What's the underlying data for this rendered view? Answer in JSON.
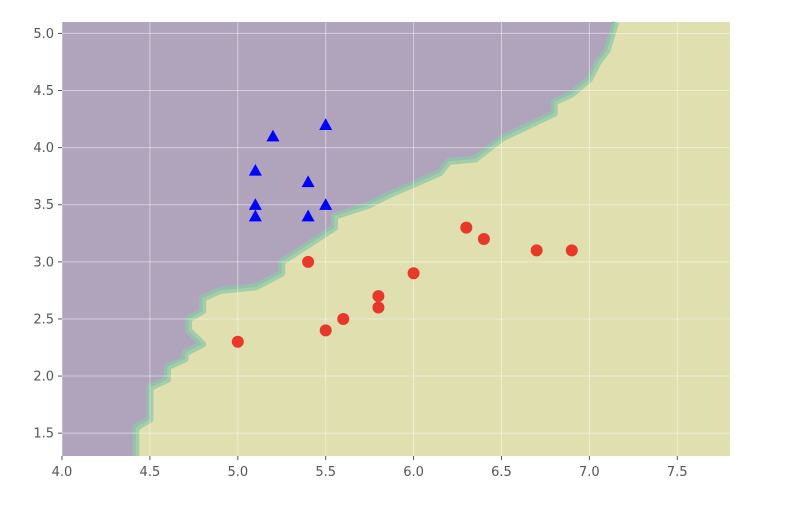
{
  "chart_data": {
    "type": "scatter",
    "title": "",
    "xlabel": "",
    "ylabel": "",
    "xlim": [
      4.0,
      7.8
    ],
    "ylim": [
      1.3,
      5.1
    ],
    "grid": true,
    "x_ticks": [
      4.0,
      4.5,
      5.0,
      5.5,
      6.0,
      6.5,
      7.0,
      7.5
    ],
    "x_tick_labels": [
      "4.0",
      "4.5",
      "5.0",
      "5.5",
      "6.0",
      "6.5",
      "7.0",
      "7.5"
    ],
    "y_ticks": [
      1.5,
      2.0,
      2.5,
      3.0,
      3.5,
      4.0,
      4.5,
      5.0
    ],
    "y_tick_labels": [
      "1.5",
      "2.0",
      "2.5",
      "3.0",
      "3.5",
      "4.0",
      "4.5",
      "5.0"
    ],
    "decision_regions": {
      "upper_left_color": "#b0a4bc",
      "lower_right_color": "#dfdfaf",
      "boundary_color": "#8fc8a8",
      "boundary": [
        [
          4.42,
          1.3
        ],
        [
          4.42,
          1.55
        ],
        [
          4.5,
          1.62
        ],
        [
          4.5,
          1.9
        ],
        [
          4.6,
          1.97
        ],
        [
          4.6,
          2.08
        ],
        [
          4.7,
          2.15
        ],
        [
          4.7,
          2.2
        ],
        [
          4.8,
          2.28
        ],
        [
          4.72,
          2.4
        ],
        [
          4.72,
          2.5
        ],
        [
          4.8,
          2.57
        ],
        [
          4.8,
          2.68
        ],
        [
          4.9,
          2.75
        ],
        [
          5.1,
          2.78
        ],
        [
          5.25,
          2.9
        ],
        [
          5.25,
          3.0
        ],
        [
          5.35,
          3.1
        ],
        [
          5.55,
          3.3
        ],
        [
          5.55,
          3.4
        ],
        [
          5.75,
          3.5
        ],
        [
          5.85,
          3.58
        ],
        [
          6.0,
          3.68
        ],
        [
          6.15,
          3.78
        ],
        [
          6.2,
          3.88
        ],
        [
          6.35,
          3.9
        ],
        [
          6.5,
          4.08
        ],
        [
          6.8,
          4.3
        ],
        [
          6.8,
          4.4
        ],
        [
          6.9,
          4.47
        ],
        [
          7.0,
          4.6
        ],
        [
          7.05,
          4.75
        ],
        [
          7.1,
          4.85
        ],
        [
          7.15,
          5.1
        ]
      ]
    },
    "series": [
      {
        "marker": "triangle",
        "color": "#0000ff",
        "points": [
          [
            5.1,
            3.4
          ],
          [
            5.1,
            3.5
          ],
          [
            5.1,
            3.8
          ],
          [
            5.2,
            4.1
          ],
          [
            5.4,
            3.4
          ],
          [
            5.4,
            3.7
          ],
          [
            5.5,
            3.5
          ],
          [
            5.5,
            4.2
          ]
        ]
      },
      {
        "marker": "circle",
        "color": "#e8382a",
        "points": [
          [
            5.0,
            2.3
          ],
          [
            5.4,
            3.0
          ],
          [
            5.5,
            2.4
          ],
          [
            5.6,
            2.5
          ],
          [
            5.8,
            2.6
          ],
          [
            5.8,
            2.7
          ],
          [
            6.0,
            2.9
          ],
          [
            6.3,
            3.3
          ],
          [
            6.4,
            3.2
          ],
          [
            6.7,
            3.1
          ],
          [
            6.9,
            3.1
          ]
        ]
      }
    ]
  }
}
